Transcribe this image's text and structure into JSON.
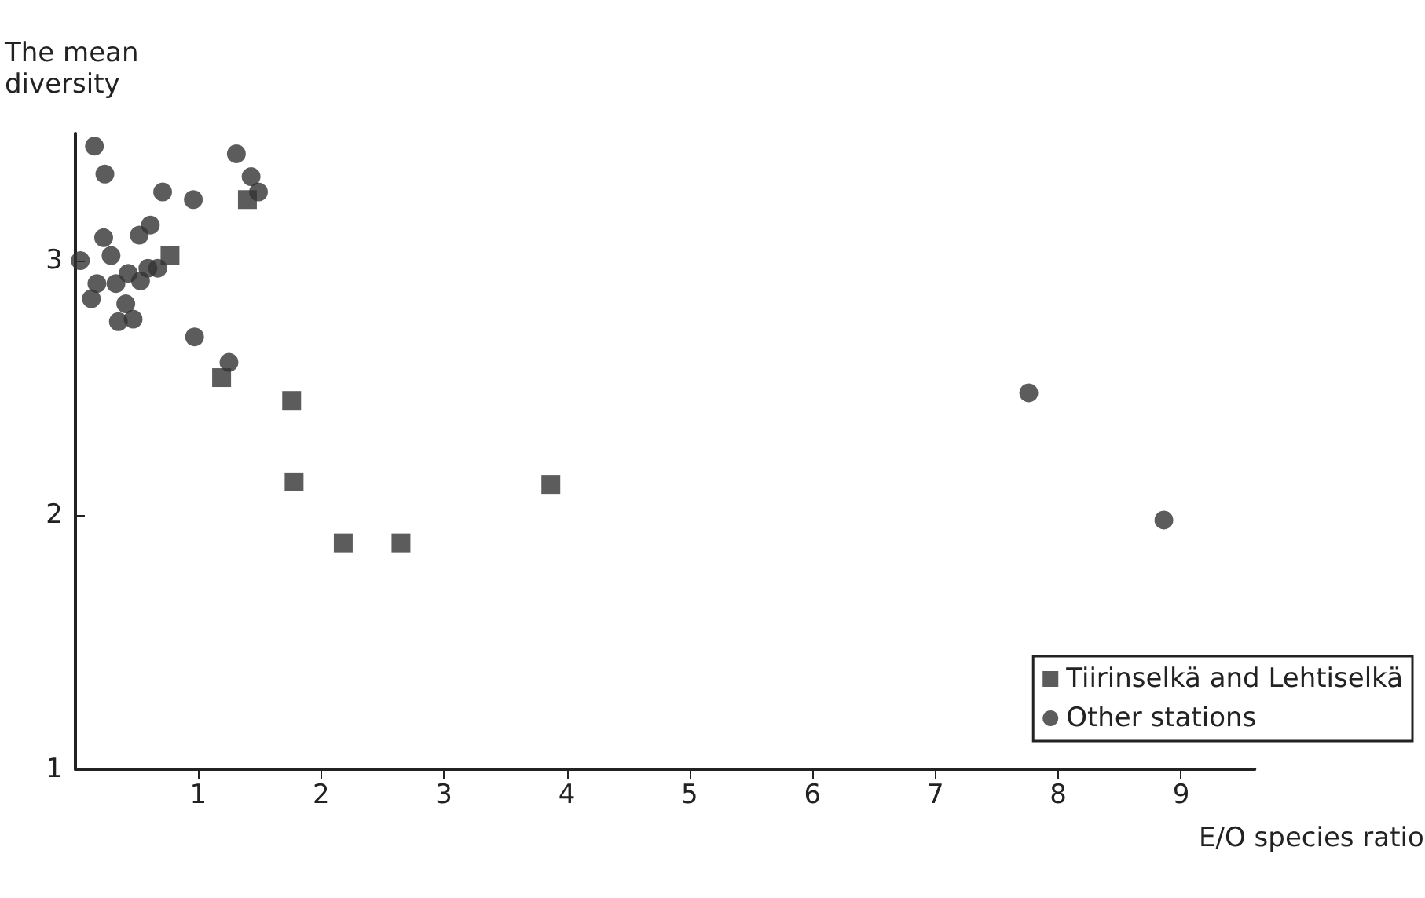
{
  "chart_data": {
    "type": "scatter",
    "ylabel": "The mean\ndiversity",
    "xlabel": "E/O species ratio",
    "xlim": [
      0,
      9.6
    ],
    "xticks": [
      1,
      2,
      3,
      4,
      5,
      6,
      7,
      8,
      9
    ],
    "ylim": [
      1,
      3.5
    ],
    "yticks": [
      1,
      2,
      3
    ],
    "grid": false,
    "legend": "bottom right",
    "series": [
      {
        "name": "Tiirinselkä and Lehtiselkä",
        "color": "#333333",
        "marker": "square",
        "x": [
          0.77,
          1.4,
          1.19,
          1.76,
          1.78,
          2.18,
          2.65,
          3.87
        ],
        "values": [
          3.02,
          3.24,
          2.54,
          2.45,
          2.13,
          1.89,
          1.89,
          2.12
        ]
      },
      {
        "name": "Other stations",
        "color": "#333333",
        "marker": "circle",
        "x": [
          0.155,
          0.24,
          0.71,
          0.96,
          1.31,
          1.43,
          1.49,
          0.61,
          0.52,
          0.23,
          0.29,
          0.04,
          0.175,
          0.13,
          0.33,
          0.43,
          0.53,
          0.59,
          0.67,
          0.41,
          0.35,
          0.47,
          0.97,
          1.25,
          7.76,
          8.86
        ],
        "values": [
          3.45,
          3.34,
          3.27,
          3.24,
          3.42,
          3.33,
          3.27,
          3.14,
          3.1,
          3.09,
          3.02,
          3,
          2.91,
          2.85,
          2.91,
          2.95,
          2.92,
          2.97,
          2.97,
          2.83,
          2.76,
          2.77,
          2.7,
          2.6,
          2.48,
          1.98
        ]
      }
    ]
  }
}
